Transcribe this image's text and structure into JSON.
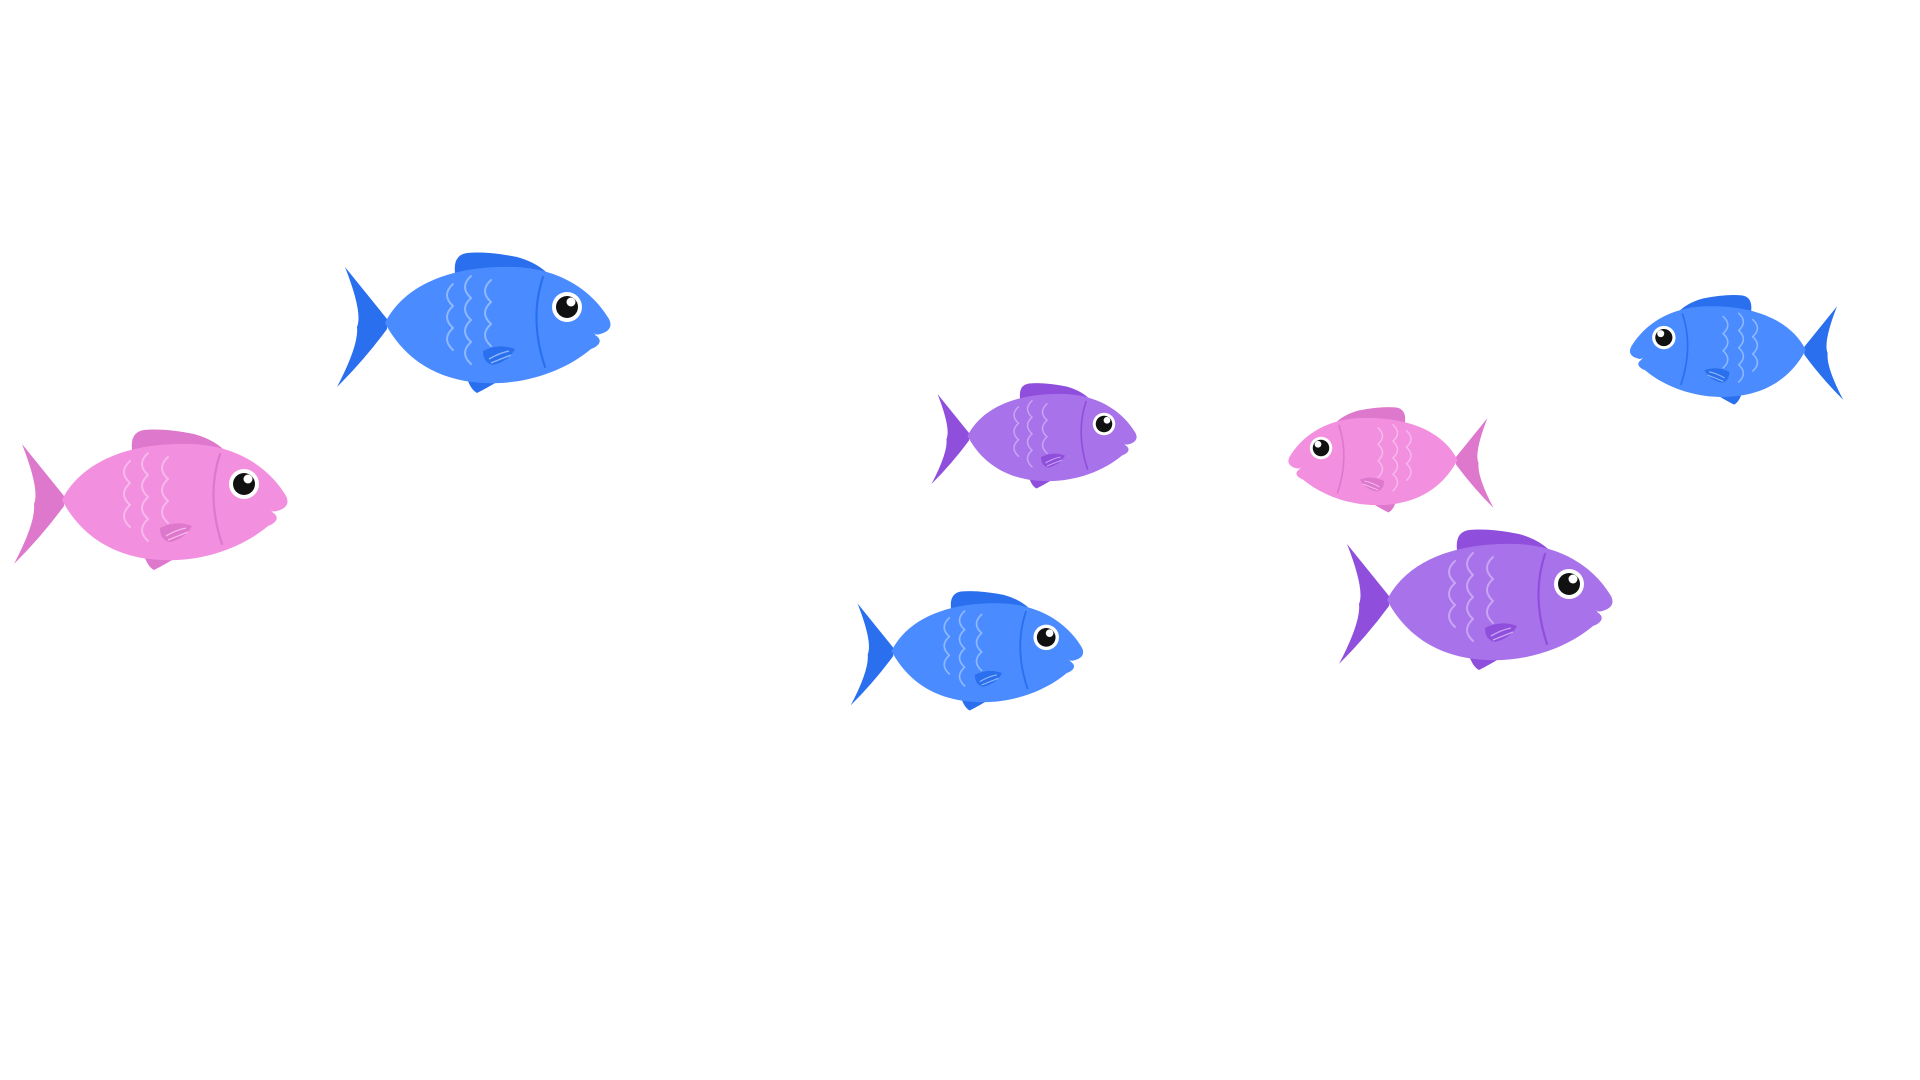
{
  "scene": {
    "background": "#ffffff",
    "palettes": {
      "blue": {
        "body": "#4a8cff",
        "fin": "#2a6fee",
        "scale": "#8fb8ff"
      },
      "pink": {
        "body": "#f28fdf",
        "fin": "#dd78cc",
        "scale": "#f7b8ec"
      },
      "purple": {
        "body": "#a872ea",
        "fin": "#8f4fdc",
        "scale": "#c8a6f4"
      }
    },
    "fish": [
      {
        "name": "pink-fish-left",
        "color": "pink",
        "facing": "right"
      },
      {
        "name": "blue-fish-top-left",
        "color": "blue",
        "facing": "right"
      },
      {
        "name": "purple-fish-center",
        "color": "purple",
        "facing": "right"
      },
      {
        "name": "blue-fish-center-bottom",
        "color": "blue",
        "facing": "right"
      },
      {
        "name": "pink-fish-right",
        "color": "pink",
        "facing": "left"
      },
      {
        "name": "purple-fish-right",
        "color": "purple",
        "facing": "right"
      },
      {
        "name": "blue-fish-top-right",
        "color": "blue",
        "facing": "left"
      }
    ]
  }
}
